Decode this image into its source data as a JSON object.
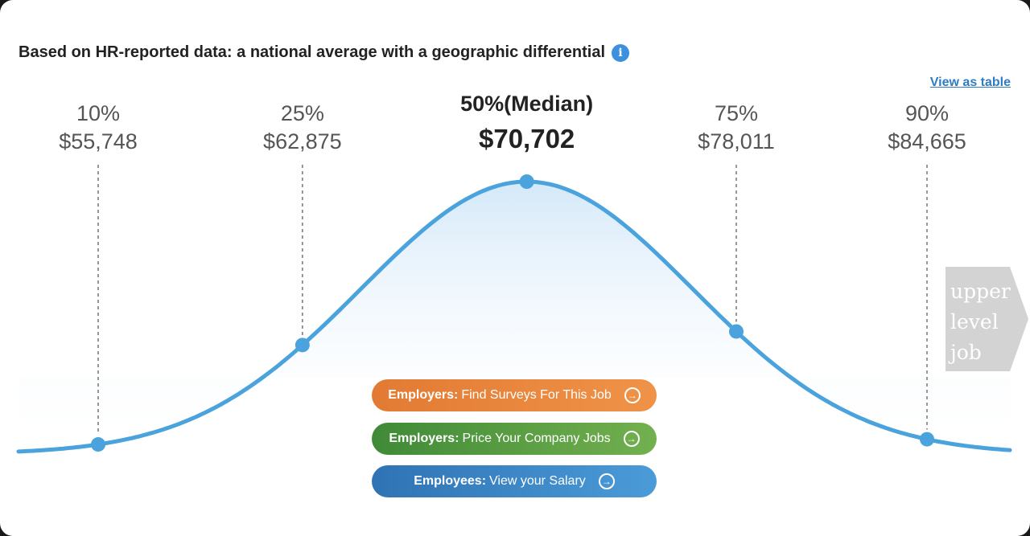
{
  "heading": {
    "title": "Based on HR-reported data: a national average with a geographic differential",
    "info_glyph": "i"
  },
  "view_as_table": "View as table",
  "chart_data": {
    "type": "area",
    "title": "",
    "xlabel": "",
    "ylabel": "",
    "grid": false,
    "legend": "none",
    "line_color": "#4aa3dc",
    "percentiles": [
      {
        "label": "10%",
        "value": "$55,748",
        "salary": 55748
      },
      {
        "label": "25%",
        "value": "$62,875",
        "salary": 62875
      },
      {
        "label": "50%(Median)",
        "value": "$70,702",
        "salary": 70702,
        "highlight": true
      },
      {
        "label": "75%",
        "value": "$78,011",
        "salary": 78011
      },
      {
        "label": "90%",
        "value": "$84,665",
        "salary": 84665
      }
    ]
  },
  "upper_level_job": {
    "label": "upper level job"
  },
  "buttons": [
    {
      "prefix": "Employers:",
      "text": "Find Surveys For This Job"
    },
    {
      "prefix": "Employers:",
      "text": "Price Your Company Jobs"
    },
    {
      "prefix": "Employees:",
      "text": "View your Salary"
    }
  ],
  "arrow_glyph": "→"
}
